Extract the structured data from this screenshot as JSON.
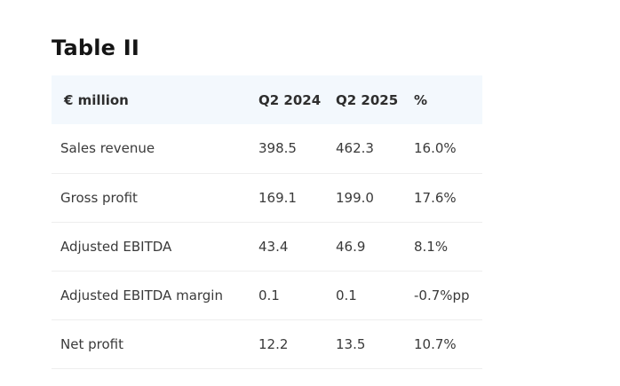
{
  "title": "Table II",
  "table": {
    "headers": [
      "€ million",
      "Q2 2024",
      "Q2 2025",
      "%"
    ],
    "rows": [
      [
        "Sales revenue",
        "398.5",
        "462.3",
        "16.0%"
      ],
      [
        "Gross profit",
        "169.1",
        "199.0",
        "17.6%"
      ],
      [
        "Adjusted EBITDA",
        "43.4",
        "46.9",
        "8.1%"
      ],
      [
        "Adjusted EBITDA margin",
        "0.1",
        "0.1",
        "-0.7%pp"
      ],
      [
        "Net profit",
        "12.2",
        "13.5",
        "10.7%"
      ]
    ]
  },
  "colors": {
    "header_background": "#f3f8fd",
    "row_divider": "#eeeeee",
    "text": "#3a3a3a",
    "title": "#151515"
  }
}
